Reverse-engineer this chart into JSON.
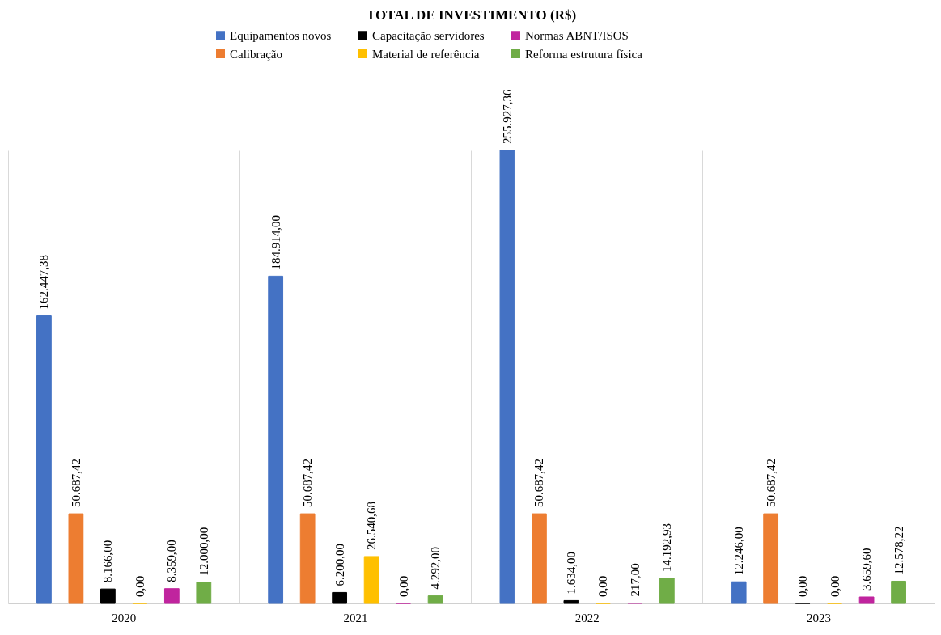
{
  "chart_data": {
    "type": "bar",
    "title": "TOTAL DE INVESTIMENTO (R$)",
    "categories": [
      "2020",
      "2021",
      "2022",
      "2023"
    ],
    "series": [
      {
        "name": "Equipamentos novos",
        "color": "#4472c4",
        "values": [
          162447.38,
          184914.0,
          255927.36,
          12246.0
        ],
        "value_labels": [
          "162.447,38",
          "184.914,00",
          "255.927,36",
          "12.246,00"
        ]
      },
      {
        "name": "Calibração",
        "color": "#ed7d31",
        "values": [
          50687.42,
          50687.42,
          50687.42,
          50687.42
        ],
        "value_labels": [
          "50.687,42",
          "50.687,42",
          "50.687,42",
          "50.687,42"
        ]
      },
      {
        "name": "Capacitação servidores",
        "color": "#000000",
        "values": [
          8166.0,
          6200.0,
          1634.0,
          0
        ],
        "value_labels": [
          "8.166,00",
          "6.200,00",
          "1.634,00",
          "0,00"
        ]
      },
      {
        "name": "Material de referência",
        "color": "#ffc000",
        "values": [
          0,
          26540.68,
          0,
          0
        ],
        "value_labels": [
          "0,00",
          "26.540,68",
          "0,00",
          "0,00"
        ]
      },
      {
        "name": "Normas ABNT/ISOS",
        "color": "#c0249e",
        "values": [
          8359.0,
          0,
          217.0,
          3659.6
        ],
        "value_labels": [
          "8.359,00",
          "0,00",
          "217,00",
          "3.659,60"
        ]
      },
      {
        "name": "Reforma estrutura física",
        "color": "#70ad47",
        "values": [
          12000.0,
          4292.0,
          14192.93,
          12578.22
        ],
        "value_labels": [
          "12.000,00",
          "4.292,00",
          "14.192,93",
          "12.578,22"
        ]
      }
    ],
    "legend": "top",
    "grid": "x"
  }
}
